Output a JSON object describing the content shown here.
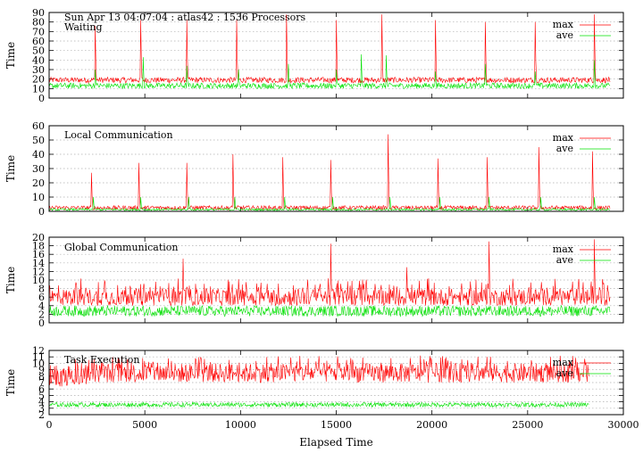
{
  "header": {
    "timestamp_line": "Sun Apr 13 04:07:04 : atlas42 : 1536 Processors"
  },
  "colors": {
    "max": "#ff0000",
    "ave": "#00e000",
    "grid": "#b0b0b0",
    "frame": "#000000"
  },
  "chart_data": [
    {
      "type": "line",
      "title": "Waiting",
      "ylabel": "Time",
      "xlim": [
        0,
        30000
      ],
      "ylim": [
        0,
        90
      ],
      "yticks": [
        0,
        10,
        20,
        30,
        40,
        50,
        60,
        70,
        80,
        90
      ],
      "legend": "top-right",
      "series": [
        {
          "name": "max",
          "color": "#ff0000",
          "baseline": [
            16,
            22
          ],
          "x_end": 29300,
          "x_end_value": 17,
          "spikes": [
            {
              "x": 2400,
              "y": 76
            },
            {
              "x": 4800,
              "y": 82
            },
            {
              "x": 7200,
              "y": 82
            },
            {
              "x": 9800,
              "y": 82
            },
            {
              "x": 12400,
              "y": 88
            },
            {
              "x": 15000,
              "y": 82
            },
            {
              "x": 17400,
              "y": 88
            },
            {
              "x": 20200,
              "y": 82
            },
            {
              "x": 22800,
              "y": 80
            },
            {
              "x": 25400,
              "y": 80
            },
            {
              "x": 28500,
              "y": 88
            }
          ]
        },
        {
          "name": "ave",
          "color": "#00e000",
          "baseline": [
            10,
            16
          ],
          "x_end": 29300,
          "x_end_value": 13,
          "spikes": [
            {
              "x": 2400,
              "y": 30
            },
            {
              "x": 4900,
              "y": 43
            },
            {
              "x": 7200,
              "y": 34
            },
            {
              "x": 9900,
              "y": 30
            },
            {
              "x": 12500,
              "y": 36
            },
            {
              "x": 15000,
              "y": 30
            },
            {
              "x": 16300,
              "y": 46
            },
            {
              "x": 17600,
              "y": 45
            },
            {
              "x": 20200,
              "y": 28
            },
            {
              "x": 22800,
              "y": 36
            },
            {
              "x": 25400,
              "y": 28
            },
            {
              "x": 28500,
              "y": 40
            }
          ]
        }
      ]
    },
    {
      "type": "line",
      "title": "Local Communication",
      "ylabel": "Time",
      "xlim": [
        0,
        30000
      ],
      "ylim": [
        0,
        60
      ],
      "yticks": [
        0,
        10,
        20,
        30,
        40,
        50,
        60
      ],
      "legend": "top-right",
      "series": [
        {
          "name": "max",
          "color": "#ff0000",
          "baseline": [
            1,
            4
          ],
          "x_end": 29300,
          "x_end_value": 2,
          "spikes": [
            {
              "x": 2200,
              "y": 27
            },
            {
              "x": 4700,
              "y": 34
            },
            {
              "x": 7200,
              "y": 34
            },
            {
              "x": 9600,
              "y": 40
            },
            {
              "x": 12200,
              "y": 38
            },
            {
              "x": 14700,
              "y": 36
            },
            {
              "x": 17700,
              "y": 54
            },
            {
              "x": 20300,
              "y": 37
            },
            {
              "x": 22900,
              "y": 38
            },
            {
              "x": 25600,
              "y": 45
            },
            {
              "x": 28400,
              "y": 42
            }
          ]
        },
        {
          "name": "ave",
          "color": "#00e000",
          "baseline": [
            0.5,
            2
          ],
          "x_end": 29300,
          "x_end_value": 1,
          "spikes": [
            {
              "x": 2300,
              "y": 10
            },
            {
              "x": 4800,
              "y": 10
            },
            {
              "x": 7300,
              "y": 10
            },
            {
              "x": 9700,
              "y": 10
            },
            {
              "x": 12300,
              "y": 10
            },
            {
              "x": 14800,
              "y": 10
            },
            {
              "x": 17800,
              "y": 10
            },
            {
              "x": 20400,
              "y": 10
            },
            {
              "x": 23000,
              "y": 10
            },
            {
              "x": 25700,
              "y": 10
            },
            {
              "x": 28500,
              "y": 10
            }
          ]
        }
      ]
    },
    {
      "type": "line",
      "title": "Global Communication",
      "ylabel": "Time",
      "xlim": [
        0,
        30000
      ],
      "ylim": [
        0,
        20
      ],
      "yticks": [
        0,
        2,
        4,
        6,
        8,
        10,
        12,
        14,
        16,
        18,
        20
      ],
      "legend": "top-right",
      "series": [
        {
          "name": "max",
          "color": "#ff0000",
          "baseline": [
            4,
            8
          ],
          "x_end": 29300,
          "x_end_value": 6,
          "spikes": [
            {
              "x": 7000,
              "y": 15
            },
            {
              "x": 14700,
              "y": 18.5
            },
            {
              "x": 18700,
              "y": 13
            },
            {
              "x": 23000,
              "y": 19
            },
            {
              "x": 28500,
              "y": 19.5
            }
          ]
        },
        {
          "name": "ave",
          "color": "#00e000",
          "baseline": [
            1.5,
            4
          ],
          "x_end": 29300,
          "x_end_value": 2.5,
          "spikes": []
        }
      ]
    },
    {
      "type": "line",
      "title": "Task Execution",
      "ylabel": "Time",
      "xlabel": "Elapsed Time",
      "xlim": [
        0,
        30000
      ],
      "ylim": [
        2,
        12
      ],
      "yticks": [
        2,
        3,
        4,
        5,
        6,
        7,
        8,
        9,
        10,
        11,
        12
      ],
      "xticks": [
        0,
        5000,
        10000,
        15000,
        20000,
        25000,
        30000
      ],
      "legend": "top-right",
      "series": [
        {
          "name": "max",
          "color": "#ff0000",
          "baseline": [
            7,
            10
          ],
          "x_end": 28200,
          "x_end_value": 8,
          "spikes": []
        },
        {
          "name": "ave",
          "color": "#00e000",
          "baseline": [
            3.2,
            3.9
          ],
          "x_end": 28200,
          "x_end_value": 3.6,
          "spikes": []
        }
      ]
    }
  ]
}
